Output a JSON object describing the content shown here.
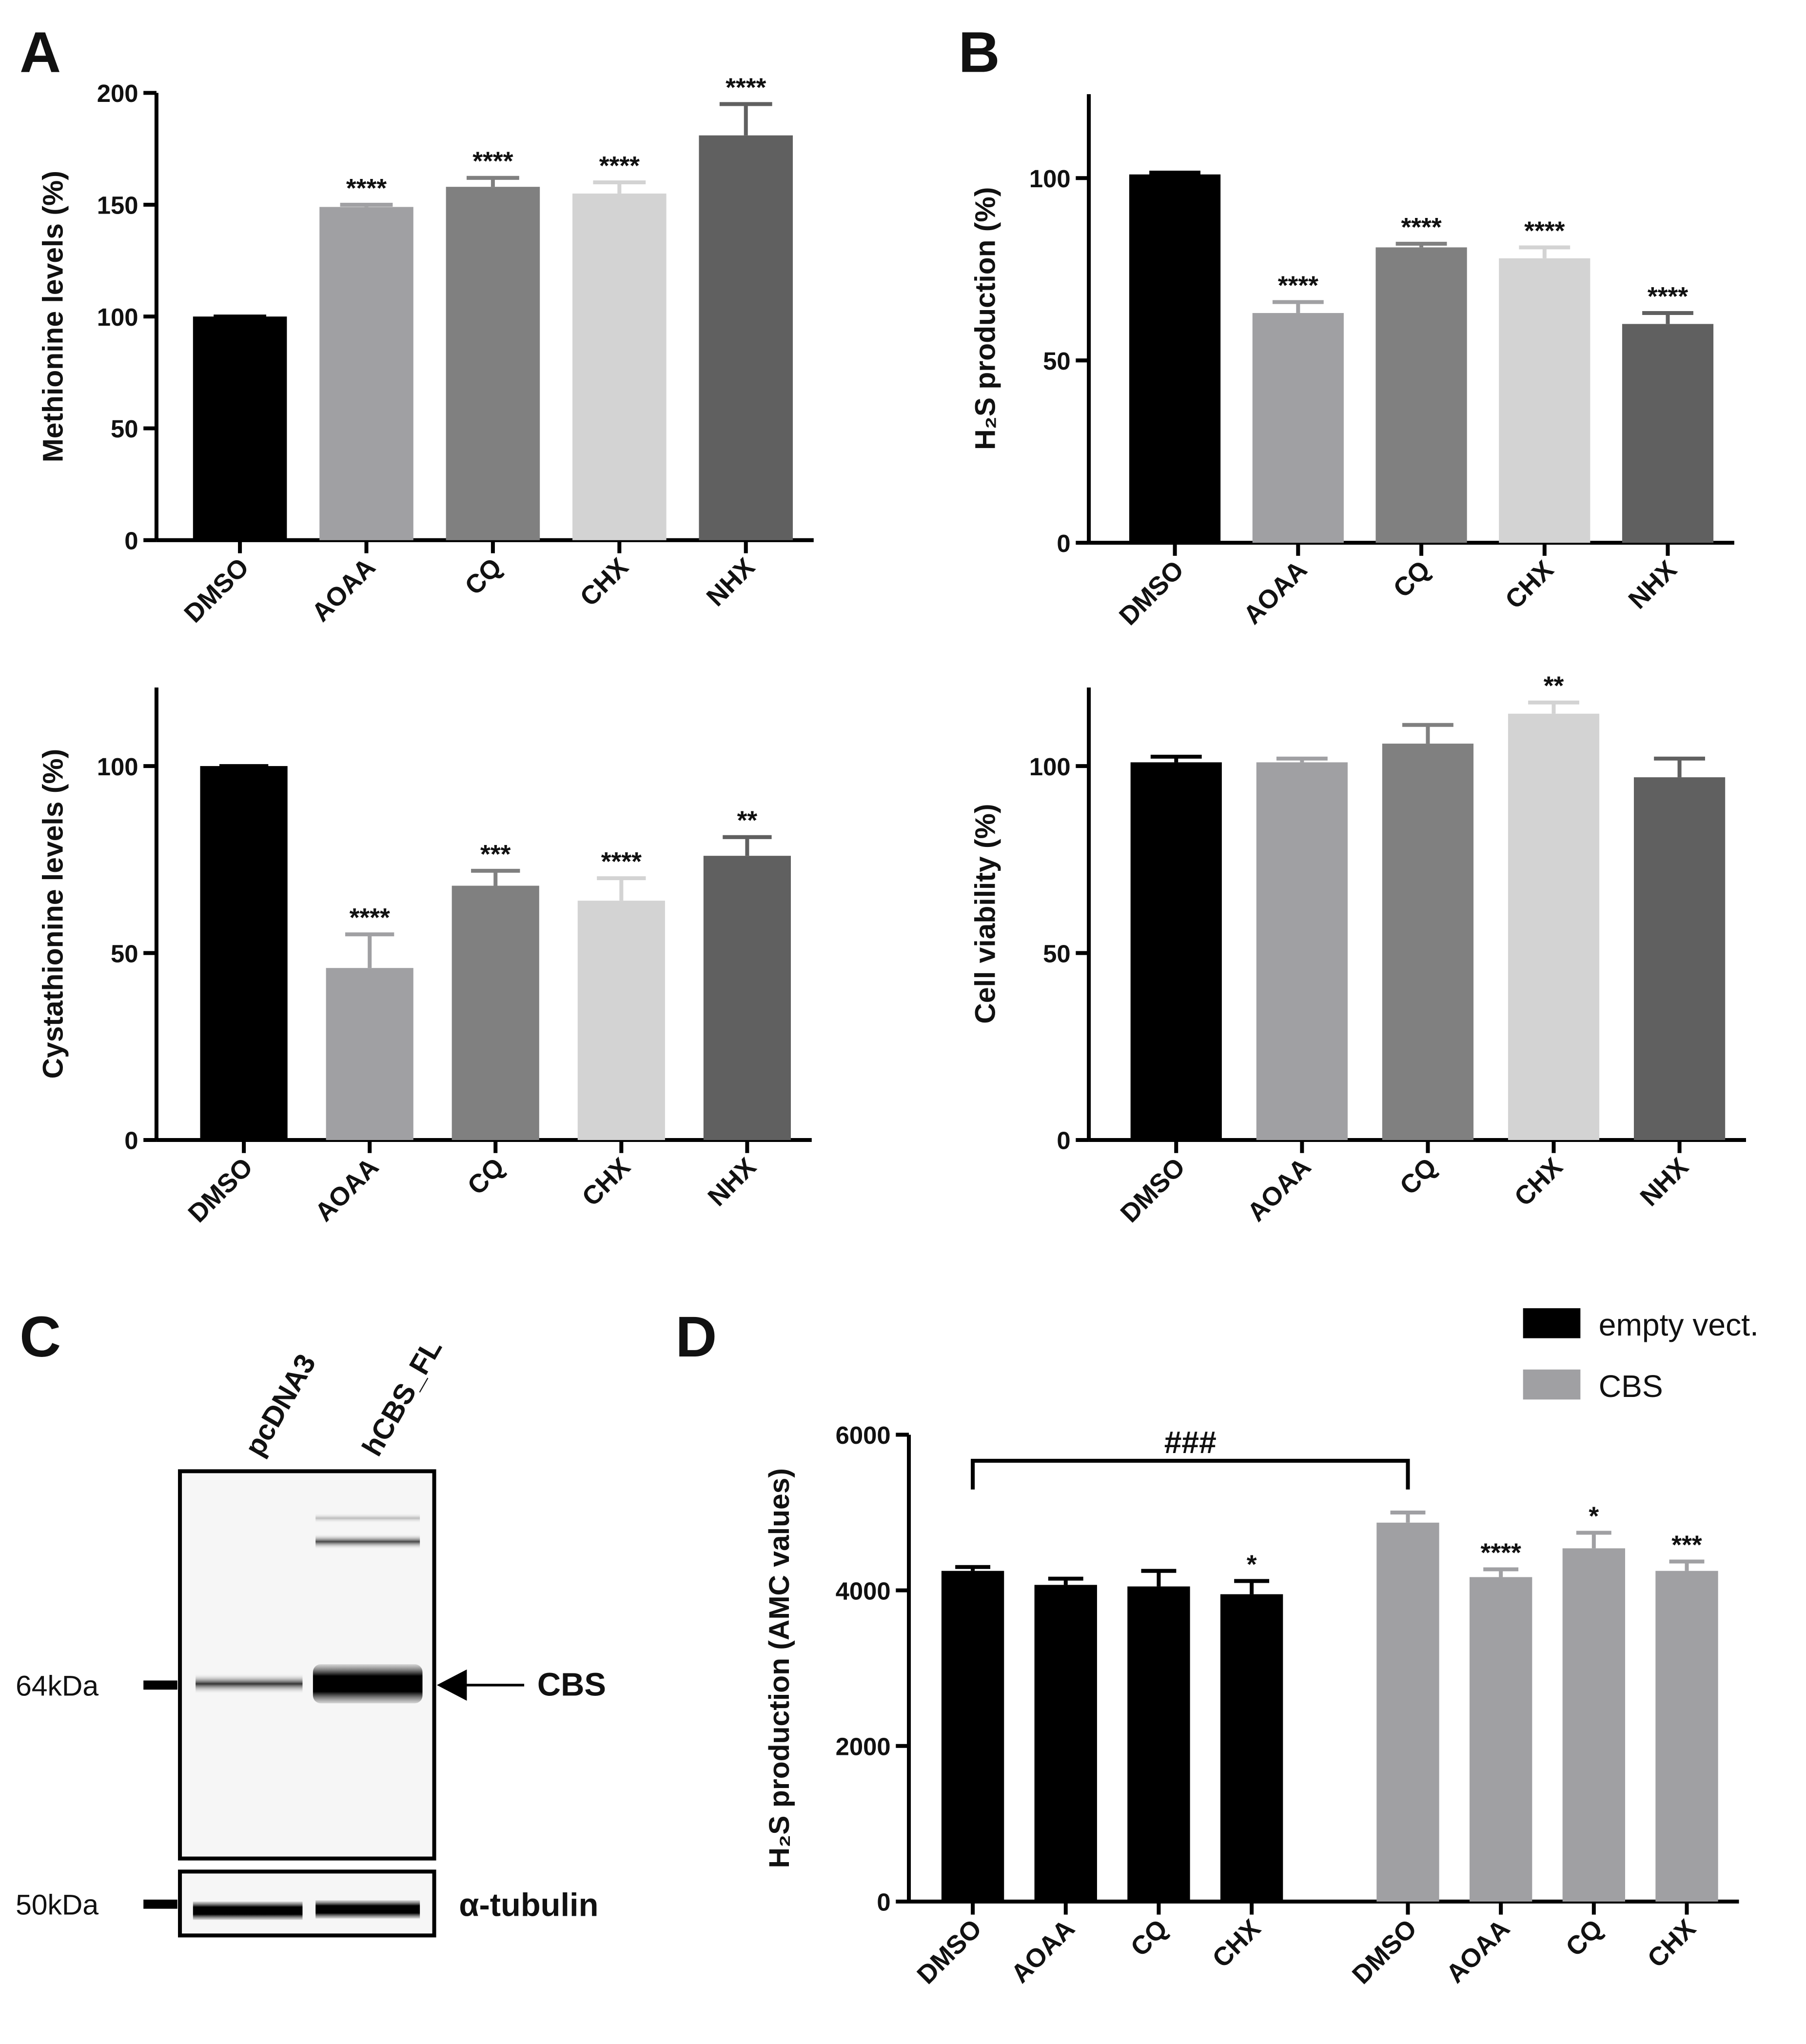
{
  "chart_data": [
    {
      "type": "bar",
      "panel": "A",
      "ylabel": "Methionine levels (%)",
      "categories": [
        "DMSO",
        "AOAA",
        "CQ",
        "CHX",
        "NHX"
      ],
      "values": [
        100,
        149,
        158,
        155,
        181
      ],
      "errors": [
        0,
        1,
        4,
        5,
        14
      ],
      "significance": [
        null,
        "****",
        "****",
        "****",
        "****"
      ],
      "colors": [
        "#000000",
        "#a0a0a3",
        "#808080",
        "#d3d3d3",
        "#606060"
      ],
      "ylim": [
        0,
        200
      ],
      "yticks": [
        0,
        50,
        100,
        150,
        200
      ]
    },
    {
      "type": "bar",
      "ylabel": "Cystathionine levels (%)",
      "categories": [
        "DMSO",
        "AOAA",
        "CQ",
        "CHX",
        "NHX"
      ],
      "values": [
        100,
        46,
        68,
        64,
        76
      ],
      "errors": [
        0,
        9,
        4,
        6,
        5
      ],
      "significance": [
        null,
        "****",
        "***",
        "****",
        "**"
      ],
      "colors": [
        "#000000",
        "#a0a0a3",
        "#808080",
        "#d3d3d3",
        "#606060"
      ],
      "ylim": [
        0,
        121
      ],
      "yticks": [
        0,
        50,
        100
      ]
    },
    {
      "type": "bar",
      "panel": "B",
      "ylabel": "H₂S production (%)",
      "categories": [
        "DMSO",
        "AOAA",
        "CQ",
        "CHX",
        "NHX"
      ],
      "values": [
        101,
        63,
        81,
        78,
        60
      ],
      "errors": [
        0.5,
        3,
        1,
        3,
        3
      ],
      "significance": [
        null,
        "****",
        "****",
        "****",
        "****"
      ],
      "colors": [
        "#000000",
        "#a0a0a3",
        "#808080",
        "#d3d3d3",
        "#606060"
      ],
      "ylim": [
        0,
        123
      ],
      "yticks": [
        0,
        50,
        100
      ]
    },
    {
      "type": "bar",
      "ylabel": "Cell viability (%)",
      "categories": [
        "DMSO",
        "AOAA",
        "CQ",
        "CHX",
        "NHX"
      ],
      "values": [
        101,
        101,
        106,
        114,
        97
      ],
      "errors": [
        1.5,
        1,
        5,
        3,
        5
      ],
      "significance": [
        null,
        null,
        null,
        "**",
        null
      ],
      "colors": [
        "#000000",
        "#a0a0a3",
        "#808080",
        "#d3d3d3",
        "#606060"
      ],
      "ylim": [
        0,
        121
      ],
      "yticks": [
        0,
        50,
        100
      ]
    },
    {
      "type": "grouped_bar",
      "panel": "D",
      "ylabel": "H₂S production (AMC values)",
      "categories": [
        "DMSO",
        "AOAA",
        "CQ",
        "CHX",
        "DMSO",
        "AOAA",
        "CQ",
        "CHX"
      ],
      "series": [
        {
          "name": "empty vect.",
          "color": "#000000",
          "values": [
            4250,
            4070,
            4050,
            3950,
            null,
            null,
            null,
            null
          ],
          "errors": [
            50,
            80,
            200,
            170,
            null,
            null,
            null,
            null
          ],
          "significance": [
            null,
            null,
            null,
            "*",
            null,
            null,
            null,
            null
          ]
        },
        {
          "name": "CBS",
          "color": "#a0a0a3",
          "values": [
            null,
            null,
            null,
            null,
            4870,
            4170,
            4540,
            4250
          ],
          "errors": [
            null,
            null,
            null,
            null,
            130,
            100,
            200,
            120
          ],
          "significance": [
            null,
            null,
            null,
            null,
            null,
            "****",
            "*",
            "***"
          ]
        }
      ],
      "bracket_label": "###",
      "ylim": [
        0,
        6000
      ],
      "yticks": [
        0,
        2000,
        4000,
        6000
      ]
    }
  ],
  "blot": {
    "panel": "C",
    "lanes": [
      "pcDNA3",
      "hCBS_FL"
    ],
    "markers": [
      "64kDa",
      "50kDa"
    ],
    "labels": [
      "CBS",
      "α-tubulin"
    ]
  }
}
